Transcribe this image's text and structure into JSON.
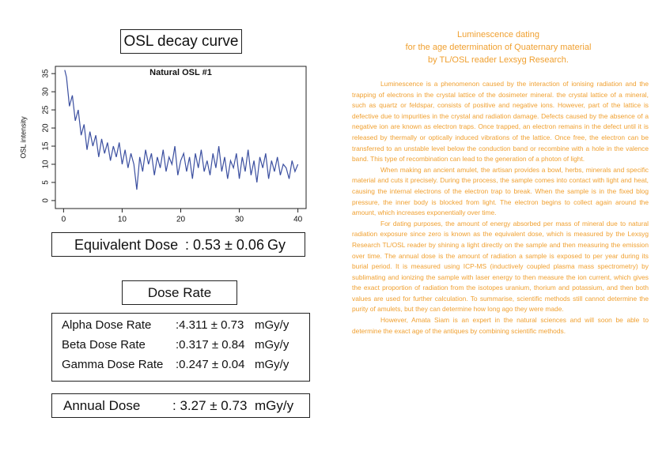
{
  "heading": "OSL decay curve",
  "chart_data": {
    "type": "line",
    "title": "Natural OSL #1",
    "y_label": "OSL intensity",
    "color": "#3b4fa0",
    "x": [
      0.2,
      0.5,
      1,
      1.5,
      2,
      2.5,
      3,
      3.5,
      4,
      4.5,
      5,
      5.5,
      6,
      6.5,
      7,
      7.5,
      8,
      8.5,
      9,
      9.5,
      10,
      10.5,
      11,
      11.5,
      12,
      12.5,
      13,
      13.5,
      14,
      14.5,
      15,
      15.5,
      16,
      16.5,
      17,
      17.5,
      18,
      18.5,
      19,
      19.5,
      20,
      20.5,
      21,
      21.5,
      22,
      22.5,
      23,
      23.5,
      24,
      24.5,
      25,
      25.5,
      26,
      26.5,
      27,
      27.5,
      28,
      28.5,
      29,
      29.5,
      30,
      30.5,
      31,
      31.5,
      32,
      32.5,
      33,
      33.5,
      34,
      34.5,
      35,
      35.5,
      36,
      36.5,
      37,
      37.5,
      38,
      38.5,
      39,
      39.5,
      40
    ],
    "values": [
      36,
      34,
      26,
      29,
      22,
      25,
      18,
      21,
      14,
      19,
      15,
      18,
      12,
      17,
      13,
      16,
      11,
      15,
      12,
      16,
      10,
      14,
      9,
      13,
      10,
      3,
      12,
      8,
      14,
      10,
      13,
      7,
      12,
      9,
      14,
      8,
      12,
      10,
      15,
      7,
      11,
      13,
      8,
      12,
      6,
      13,
      9,
      14,
      8,
      11,
      7,
      13,
      9,
      15,
      8,
      12,
      6,
      11,
      9,
      13,
      6,
      12,
      8,
      14,
      7,
      11,
      5,
      12,
      9,
      13,
      6,
      11,
      8,
      12,
      7,
      10,
      9,
      6,
      11,
      8,
      10
    ],
    "xlim": [
      -1.4,
      41.4
    ],
    "ylim": [
      -2.2,
      37
    ],
    "xticks": [
      0,
      10,
      20,
      30,
      40
    ],
    "yticks": [
      0,
      5,
      10,
      15,
      20,
      25,
      30,
      35
    ]
  },
  "equivalent_dose": {
    "label": "Equivalent Dose",
    "value": ": 0.53 ± 0.06",
    "unit": "Gy"
  },
  "dose_rate_heading": "Dose Rate",
  "dose_rates": [
    {
      "label": "Alpha Dose Rate",
      "value": ":4.311 ± 0.73",
      "unit": "mGy/y"
    },
    {
      "label": "Beta Dose Rate",
      "value": ":0.317 ± 0.84",
      "unit": "mGy/y"
    },
    {
      "label": "Gamma Dose Rate",
      "value": ":0.247 ± 0.04",
      "unit": "mGy/y"
    }
  ],
  "annual_dose": {
    "label": "Annual Dose",
    "value": ": 3.27 ± 0.73",
    "unit": "mGy/y"
  },
  "article": {
    "title": [
      "Luminescence dating",
      "for the age determination of Quaternary material",
      "by TL/OSL reader Lexsyg Research."
    ],
    "paragraphs": [
      "Luminescence is a phenomenon caused by the interaction of ionising radiation and the trapping of electrons in the crystal lattice of the dosimeter mineral. the crystal lattice of a mineral, such as quartz or feldspar, consists of positive and negative ions. However, part of the lattice is defective due to impurities in the crystal and radiation damage. Defects caused by the absence of a negative ion are known as electron traps. Once trapped, an electron remains in the defect until it is released by thermally or optically induced vibrations of the lattice. Once free, the electron can be transferred to an unstable level below the conduction band or recombine with a hole in the valence band. This type of recombination can lead to the generation of a photon of light.",
      "When making an ancient amulet, the artisan provides a bowl, herbs, minerals and specific material and cuts it precisely. During the process, the sample comes into contact with light and heat, causing the internal electrons of the electron trap to break. When the sample is in the fixed blog pressure, the inner body is blocked from light. The electron begins to collect again around the amount, which increases exponentially over time.",
      "For dating purposes, the amount of energy absorbed per mass of mineral due to natural radiation exposure since zero is known as the equivalent dose, which is measured by the Lexsyg Research TL/OSL reader by shining a light directly on the sample and then measuring the emission over time. The annual dose is the amount of radiation a sample is exposed to per year during its burial period. It is measured using ICP-MS (inductively coupled plasma mass spectrometry) by sublimating and ionizing the sample with laser energy to then measure the ion current, which gives the exact proportion of radiation from the isotopes uranium, thorium and potassium, and then both values are used for further calculation. To summarise, scientific methods still cannot determine the purity of amulets, but they can determine how long ago they were made.",
      "However, Amata Siam is an expert in the natural sciences and will soon be able to determine the exact age of the antiques by combining scientific methods."
    ]
  }
}
